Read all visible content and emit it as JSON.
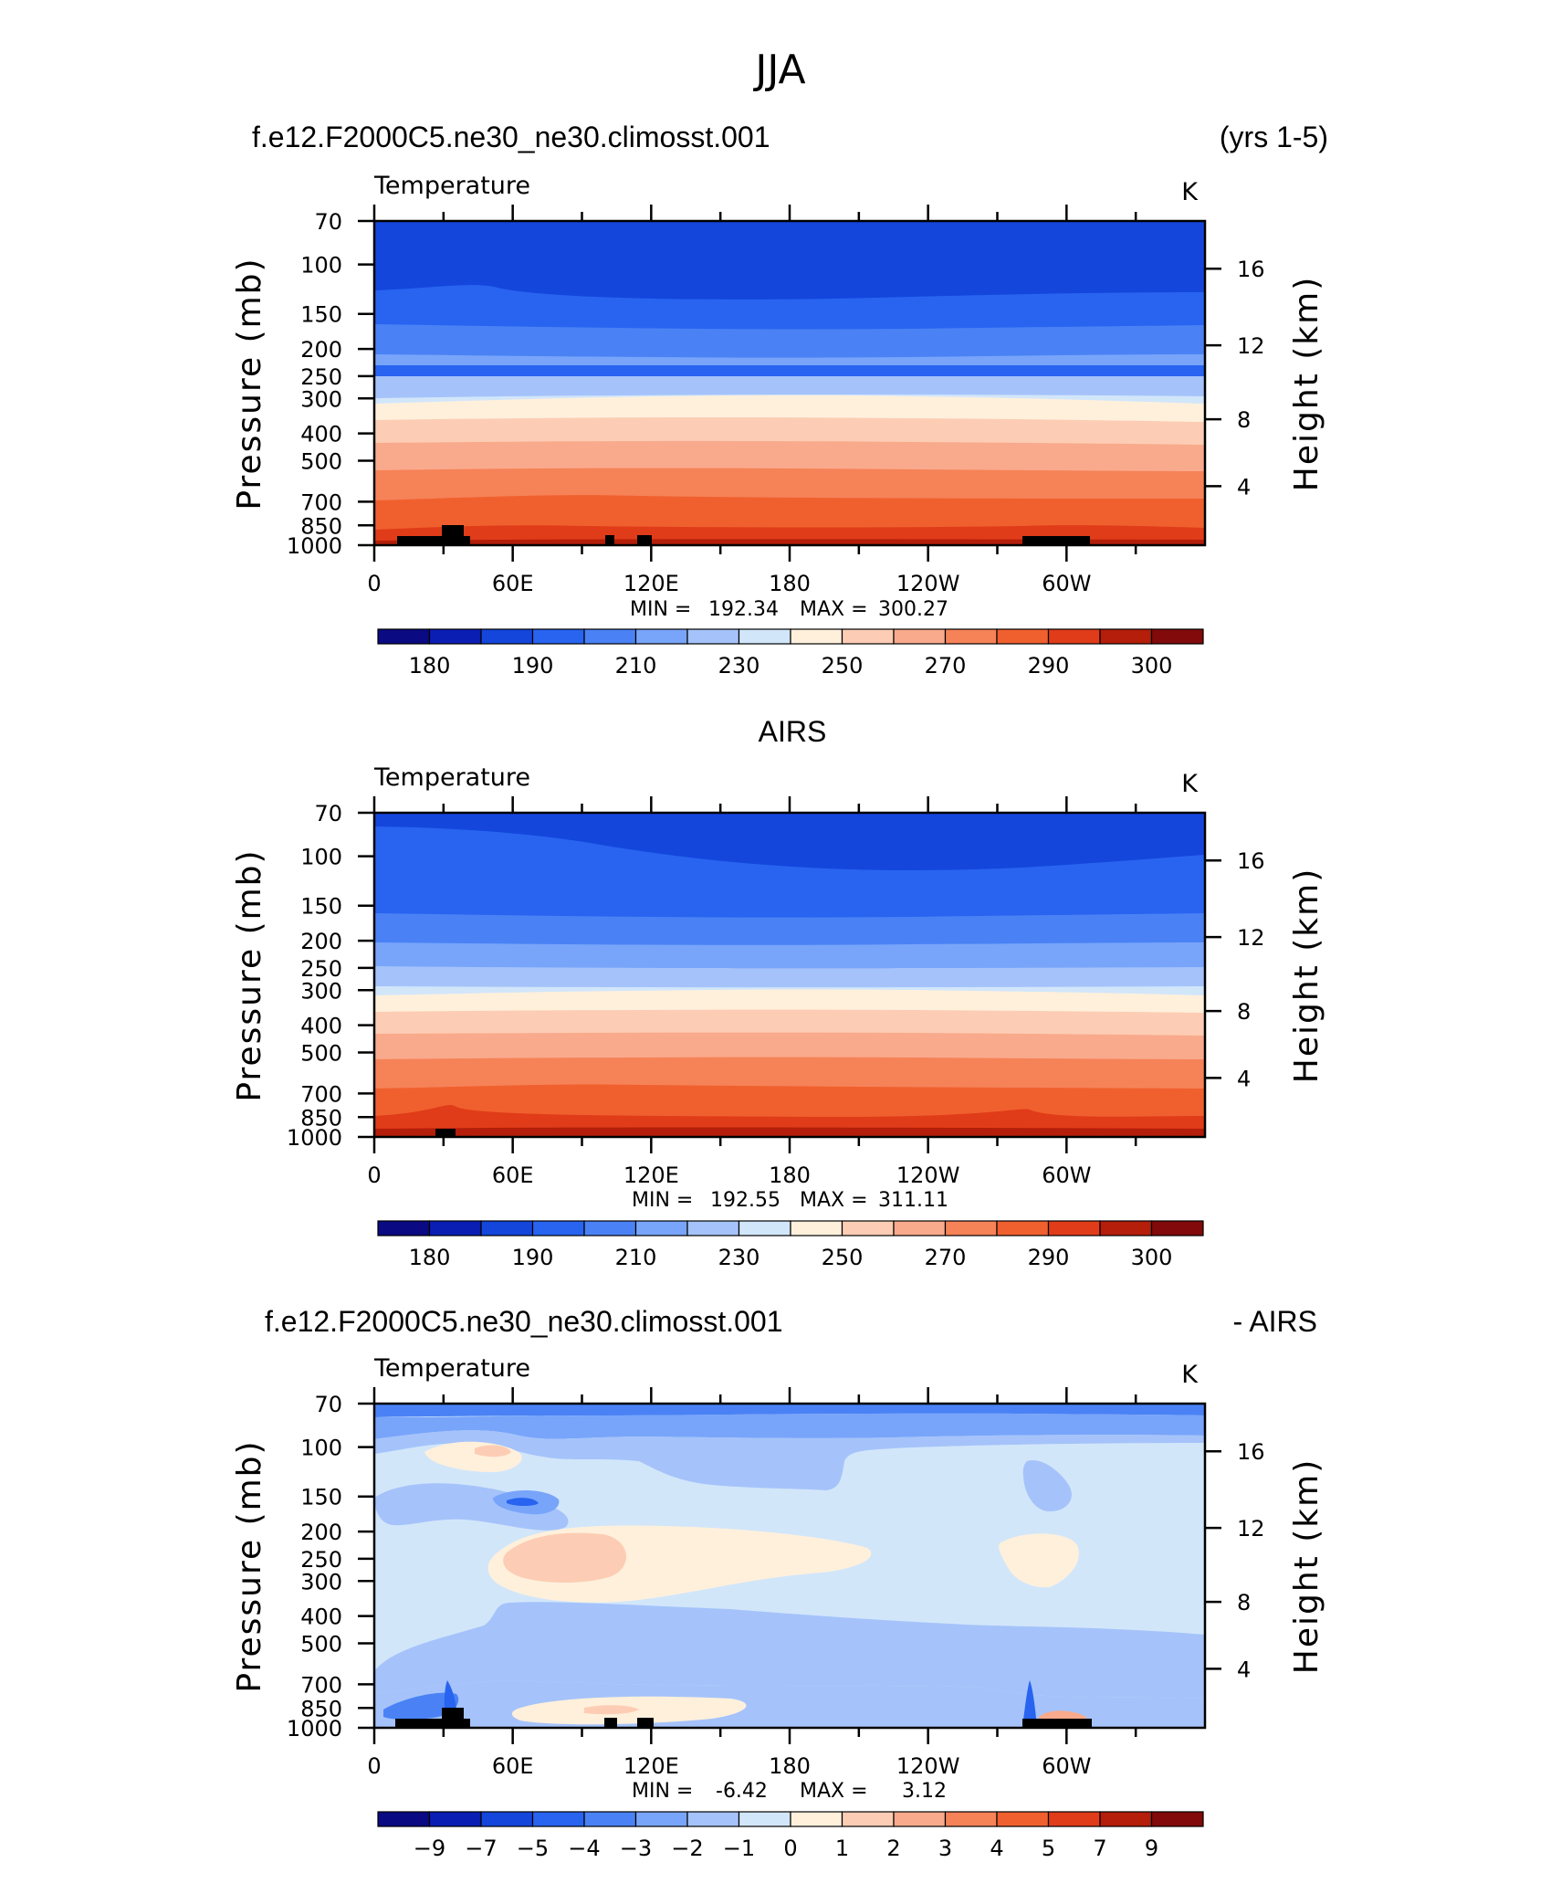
{
  "figure": {
    "title": "JJA",
    "case_name": "f.e12.F2000C5.ne30_ne30.climosst.001",
    "years": "(yrs 1-5)",
    "obs_name": "AIRS",
    "diff_suffix": "- AIRS"
  },
  "chart_data": [
    {
      "type": "heatmap",
      "title": "f.e12.F2000C5.ne30_ne30.climosst.001",
      "subtitle": "Temperature",
      "units": "K",
      "ylabel": "Pressure (mb)",
      "y2label": "Height (km)",
      "x_ticks": [
        "0",
        "60E",
        "120E",
        "180",
        "120W",
        "60W"
      ],
      "y_ticks": [
        "70",
        "100",
        "150",
        "200",
        "250",
        "300",
        "400",
        "500",
        "700",
        "850",
        "1000"
      ],
      "y2_ticks": [
        "16",
        "12",
        "8",
        "4"
      ],
      "min_label": "MIN =",
      "min_value": "192.34",
      "max_label": "MAX =",
      "max_value": "300.27",
      "colorbar_labels": [
        "180",
        "190",
        "210",
        "230",
        "250",
        "270",
        "290",
        "300"
      ],
      "colorbar_colors": [
        "#0a0a82",
        "#0a1eb4",
        "#1446dc",
        "#2864f0",
        "#4a82f5",
        "#78a5fa",
        "#a5c3fa",
        "#d2e6fa",
        "#fff0dc",
        "#fccdb4",
        "#f9aa8c",
        "#f68258",
        "#f0602e",
        "#e03c19",
        "#b41e0a",
        "#820a0a"
      ]
    },
    {
      "type": "heatmap",
      "title": "AIRS",
      "subtitle": "Temperature",
      "units": "K",
      "ylabel": "Pressure (mb)",
      "y2label": "Height (km)",
      "x_ticks": [
        "0",
        "60E",
        "120E",
        "180",
        "120W",
        "60W"
      ],
      "y_ticks": [
        "70",
        "100",
        "150",
        "200",
        "250",
        "300",
        "400",
        "500",
        "700",
        "850",
        "1000"
      ],
      "y2_ticks": [
        "16",
        "12",
        "8",
        "4"
      ],
      "min_label": "MIN =",
      "min_value": "192.55",
      "max_label": "MAX =",
      "max_value": "311.11",
      "colorbar_labels": [
        "180",
        "190",
        "210",
        "230",
        "250",
        "270",
        "290",
        "300"
      ],
      "colorbar_colors": [
        "#0a0a82",
        "#0a1eb4",
        "#1446dc",
        "#2864f0",
        "#4a82f5",
        "#78a5fa",
        "#a5c3fa",
        "#d2e6fa",
        "#fff0dc",
        "#fccdb4",
        "#f9aa8c",
        "#f68258",
        "#f0602e",
        "#e03c19",
        "#b41e0a",
        "#820a0a"
      ]
    },
    {
      "type": "heatmap",
      "title": "f.e12.F2000C5.ne30_ne30.climosst.001",
      "subtitle": "Temperature",
      "units": "K",
      "ylabel": "Pressure (mb)",
      "y2label": "Height (km)",
      "x_ticks": [
        "0",
        "60E",
        "120E",
        "180",
        "120W",
        "60W"
      ],
      "y_ticks": [
        "70",
        "100",
        "150",
        "200",
        "250",
        "300",
        "400",
        "500",
        "700",
        "850",
        "1000"
      ],
      "y2_ticks": [
        "16",
        "12",
        "8",
        "4"
      ],
      "min_label": "MIN =",
      "min_value": "-6.42",
      "max_label": "MAX =",
      "max_value": "3.12",
      "colorbar_labels": [
        "−9",
        "−7",
        "−5",
        "−4",
        "−3",
        "−2",
        "−1",
        "0",
        "1",
        "2",
        "3",
        "4",
        "5",
        "7",
        "9"
      ],
      "colorbar_colors": [
        "#0a0a82",
        "#0a1eb4",
        "#1446dc",
        "#2864f0",
        "#4a82f5",
        "#78a5fa",
        "#a5c3fa",
        "#d2e6fa",
        "#fff0dc",
        "#fccdb4",
        "#f9aa8c",
        "#f68258",
        "#f0602e",
        "#e03c19",
        "#b41e0a",
        "#820a0a"
      ]
    }
  ]
}
